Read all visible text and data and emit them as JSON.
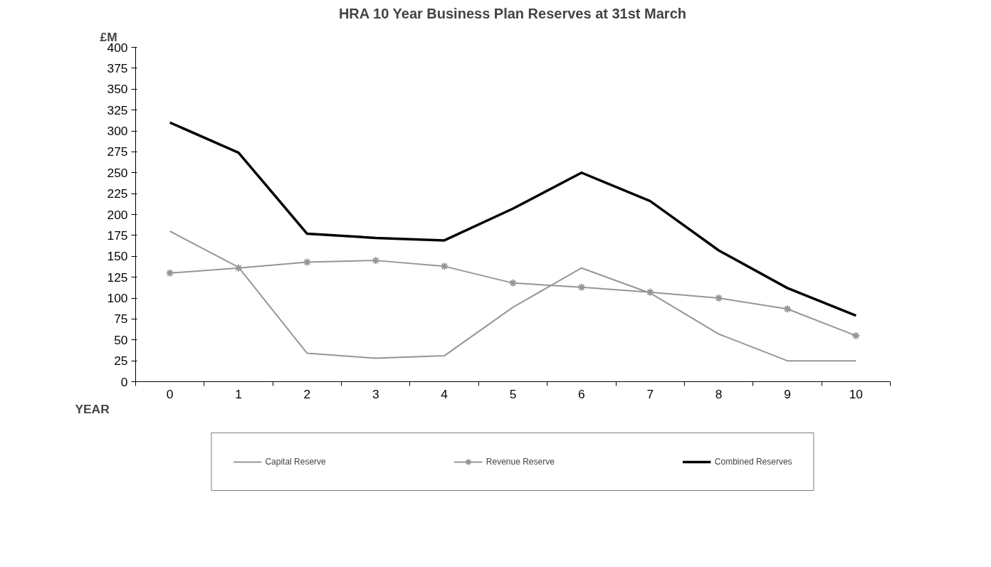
{
  "chart_data": {
    "type": "line",
    "title": "HRA 10 Year Business Plan Reserves at 31st March",
    "xlabel": "YEAR",
    "ylabel": "£M",
    "categories": [
      "0",
      "1",
      "2",
      "3",
      "4",
      "5",
      "6",
      "7",
      "8",
      "9",
      "10"
    ],
    "series": [
      {
        "name": "Capital Reserve",
        "color": "#969696",
        "values": [
          180,
          137,
          34,
          28,
          31,
          89,
          136,
          106,
          57,
          25,
          25
        ]
      },
      {
        "name": "Revenue Reserve",
        "color": "#969696",
        "marker": "cross",
        "values": [
          130,
          136,
          143,
          145,
          138,
          118,
          113,
          107,
          100,
          87,
          55
        ]
      },
      {
        "name": "Combined Reserves",
        "color": "#000000",
        "values": [
          310,
          274,
          177,
          172,
          169,
          207,
          250,
          216,
          157,
          112,
          79
        ]
      }
    ],
    "ylim": [
      0,
      400
    ],
    "yticks": [
      0,
      25,
      50,
      75,
      100,
      125,
      150,
      175,
      200,
      225,
      250,
      275,
      300,
      325,
      350,
      375,
      400
    ],
    "grid": false,
    "legend": "bottom",
    "line_style": "solid"
  }
}
